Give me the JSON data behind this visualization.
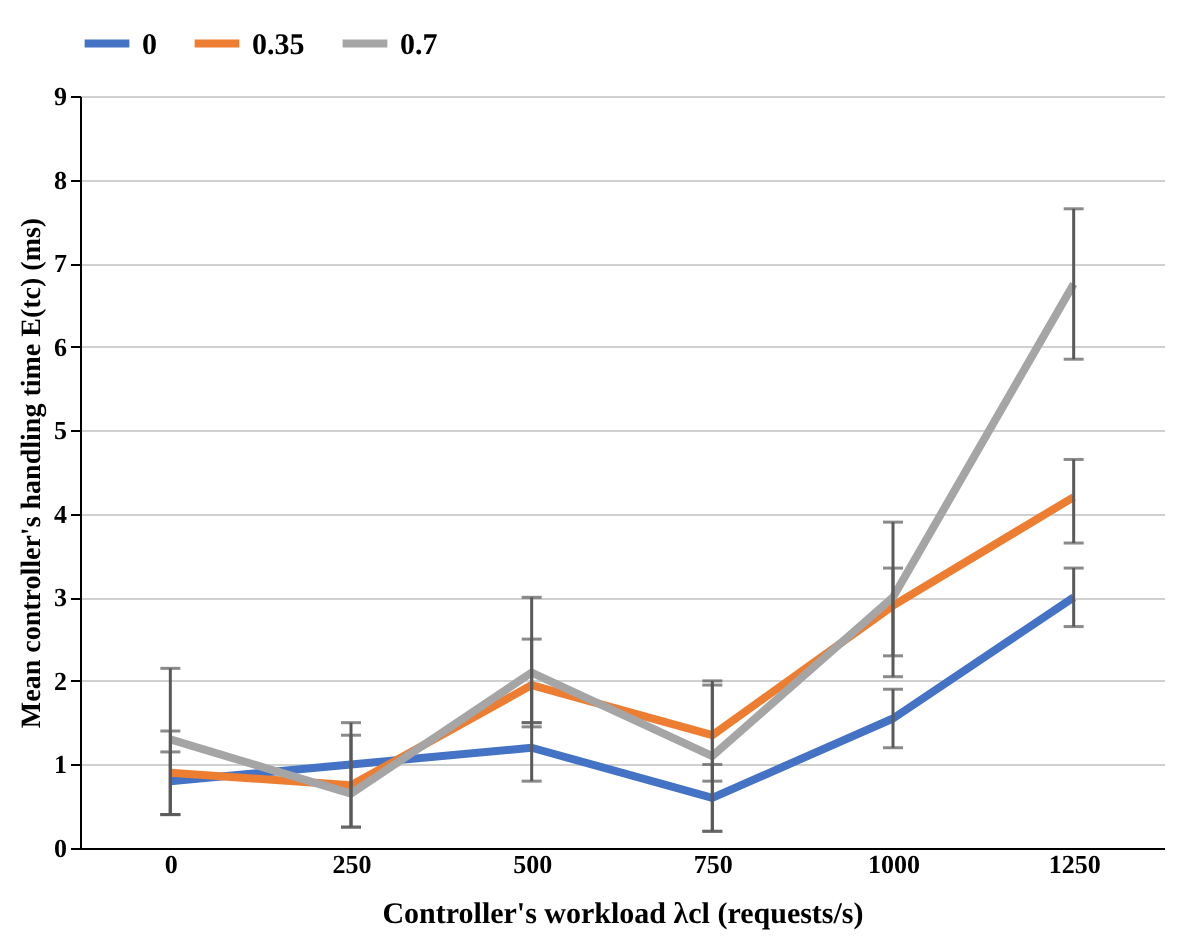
{
  "chart_data": {
    "type": "line",
    "xlabel": "Controller's workload  λcl (requests/s)",
    "ylabel": "Mean controller's handling time E(tc) (ms)",
    "categories": [
      "0",
      "250",
      "500",
      "750",
      "1000",
      "1250"
    ],
    "series": [
      {
        "name": "0",
        "color": "#4472c4",
        "values": [
          0.8,
          1.0,
          1.2,
          0.6,
          1.55,
          3.0
        ],
        "errors": [
          [
            0.4,
            1.15
          ],
          null,
          [
            0.8,
            1.5
          ],
          [
            0.2,
            1.0
          ],
          [
            1.2,
            1.9
          ],
          [
            2.65,
            3.35
          ]
        ]
      },
      {
        "name": "0.35",
        "color": "#ed7d31",
        "values": [
          0.9,
          0.75,
          1.95,
          1.35,
          2.9,
          4.2
        ],
        "errors": [
          [
            0.4,
            1.4
          ],
          [
            0.25,
            1.35
          ],
          [
            1.45,
            2.5
          ],
          [
            0.8,
            1.95
          ],
          [
            2.3,
            3.35
          ],
          [
            3.65,
            4.65
          ]
        ]
      },
      {
        "name": "0.7",
        "color": "#a5a5a5",
        "values": [
          1.3,
          0.65,
          2.1,
          1.1,
          3.0,
          6.75
        ],
        "errors": [
          [
            0.4,
            2.15
          ],
          [
            0.25,
            1.5
          ],
          [
            1.5,
            3.0
          ],
          [
            0.2,
            2.0
          ],
          [
            2.05,
            3.9
          ],
          [
            5.85,
            7.65
          ]
        ]
      }
    ],
    "ylim": [
      0,
      9
    ],
    "yticks": [
      0,
      1,
      2,
      3,
      4,
      5,
      6,
      7,
      8,
      9
    ],
    "grid": "y",
    "legend": "top",
    "marker": "none",
    "line_style": "solid"
  }
}
